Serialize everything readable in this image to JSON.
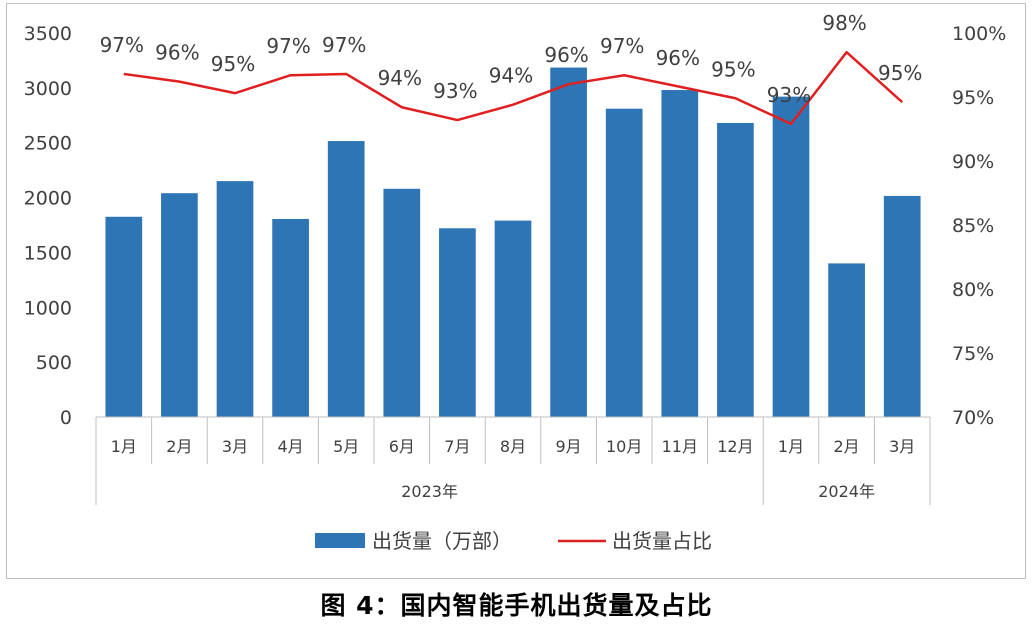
{
  "chart_data": {
    "type": "bar+line",
    "categories": [
      "1月",
      "2月",
      "3月",
      "4月",
      "5月",
      "6月",
      "7月",
      "8月",
      "9月",
      "10月",
      "11月",
      "12月",
      "1月",
      "2月",
      "3月"
    ],
    "groups": [
      {
        "label": "2023年",
        "count": 12
      },
      {
        "label": "2024年",
        "count": 3
      }
    ],
    "series": [
      {
        "name": "出货量（万部）",
        "type": "bar",
        "axis": "left",
        "color": "#2e75b6",
        "values": [
          1825,
          2040,
          2150,
          1805,
          2515,
          2080,
          1720,
          1790,
          3185,
          2810,
          2980,
          2680,
          2920,
          1400,
          2015
        ]
      },
      {
        "name": "出货量占比",
        "type": "line",
        "axis": "right",
        "color": "#e02020",
        "values": [
          96.8,
          96.2,
          95.3,
          96.7,
          96.8,
          94.2,
          93.2,
          94.4,
          96.0,
          96.7,
          95.8,
          94.9,
          92.9,
          98.5,
          94.6
        ],
        "labels": [
          "97%",
          "96%",
          "95%",
          "97%",
          "97%",
          "94%",
          "93%",
          "94%",
          "96%",
          "97%",
          "96%",
          "95%",
          "93%",
          "98%",
          "95%"
        ]
      }
    ],
    "y_left": {
      "min": 0,
      "max": 3500,
      "step": 500,
      "ticks": [
        "0",
        "500",
        "1000",
        "1500",
        "2000",
        "2500",
        "3000",
        "3500"
      ]
    },
    "y_right": {
      "min": 70,
      "max": 100,
      "step": 5,
      "ticks": [
        "70%",
        "75%",
        "80%",
        "85%",
        "90%",
        "95%",
        "100%"
      ]
    },
    "legend_position": "bottom",
    "grid": false
  },
  "caption": "图 4：国内智能手机出货量及占比"
}
